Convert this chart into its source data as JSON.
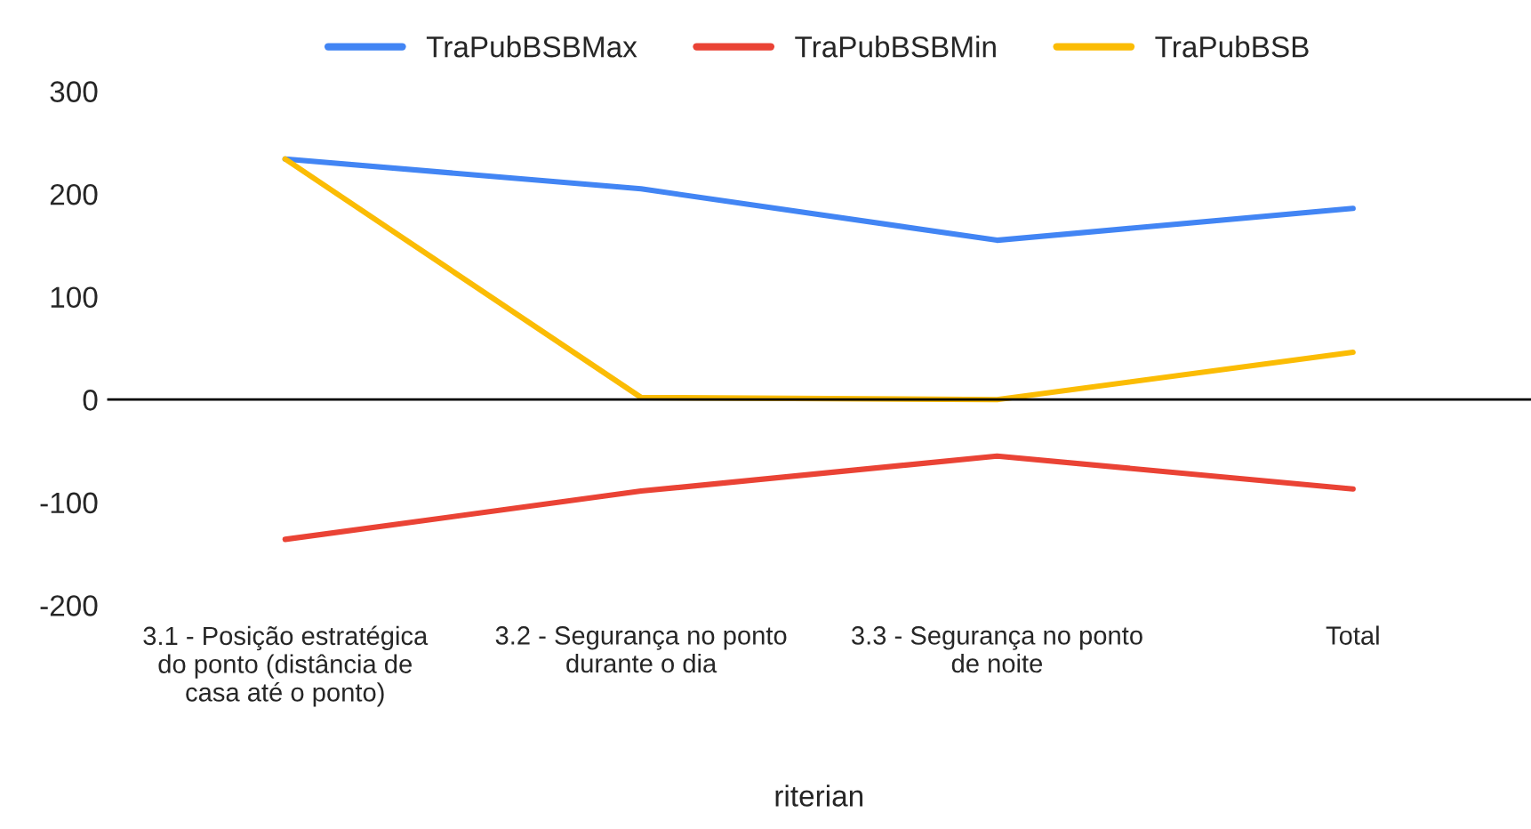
{
  "chart_data": {
    "type": "line",
    "xlabel": "riterian",
    "categories": [
      "3.1 - Posição estratégica do ponto (distância de casa até o ponto)",
      "3.2 - Segurança no ponto durante o dia",
      "3.3 - Segurança no ponto de noite",
      "Total"
    ],
    "series": [
      {
        "name": "TraPubBSBMax",
        "color": "#4285f4",
        "values": [
          234,
          205,
          155,
          186
        ]
      },
      {
        "name": "TraPubBSBMin",
        "color": "#ea4335",
        "values": [
          -136,
          -89,
          -55,
          -87
        ]
      },
      {
        "name": "TraPubBSB",
        "color": "#fbbc04",
        "values": [
          234,
          2,
          0,
          46
        ]
      }
    ],
    "ylim": [
      -200,
      300
    ],
    "yticks": [
      -200,
      -100,
      0,
      100,
      200,
      300
    ],
    "ref_lines": [
      {
        "axis": "y",
        "value": 0,
        "color": "#000000"
      }
    ],
    "grid": false,
    "legend": "top",
    "marker": "none",
    "line_style": "solid"
  }
}
